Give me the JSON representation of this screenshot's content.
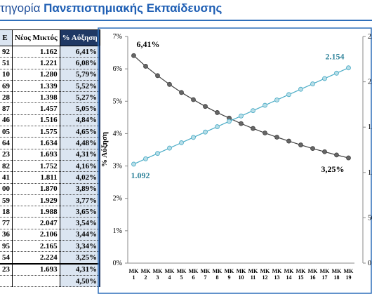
{
  "header": {
    "title_prefix": "τηγορία ",
    "title_bold": "Πανεπιστημιακής Εκπαίδευσης"
  },
  "table": {
    "columns": [
      "E",
      "Νέος Μικτός",
      "% Αύξηση"
    ],
    "rows": [
      [
        "92",
        "1.162",
        "6,41%"
      ],
      [
        "51",
        "1.221",
        "6,08%"
      ],
      [
        "10",
        "1.280",
        "5,79%"
      ],
      [
        "69",
        "1.339",
        "5,52%"
      ],
      [
        "28",
        "1.398",
        "5,27%"
      ],
      [
        "87",
        "1.457",
        "5,05%"
      ],
      [
        "46",
        "1.516",
        "4,84%"
      ],
      [
        "05",
        "1.575",
        "4,65%"
      ],
      [
        "64",
        "1.634",
        "4,48%"
      ],
      [
        "23",
        "1.693",
        "4,31%"
      ],
      [
        "82",
        "1.752",
        "4,16%"
      ],
      [
        "41",
        "1.811",
        "4,02%"
      ],
      [
        "00",
        "1.870",
        "3,89%"
      ],
      [
        "59",
        "1.929",
        "3,77%"
      ],
      [
        "18",
        "1.988",
        "3,65%"
      ],
      [
        "77",
        "2.047",
        "3,54%"
      ],
      [
        "36",
        "2.106",
        "3,44%"
      ],
      [
        "95",
        "2.165",
        "3,34%"
      ],
      [
        "54",
        "2.224",
        "3,25%"
      ],
      [
        "23",
        "1.693",
        "4,31%"
      ],
      [
        "",
        "",
        "4,50%"
      ]
    ]
  },
  "chart_data": {
    "type": "line",
    "y_label": "% Αύξηση",
    "categories": [
      "MK 1",
      "MK 2",
      "MK 3",
      "MK 4",
      "MK 5",
      "MK 6",
      "MK 7",
      "MK 8",
      "MK 9",
      "MK 10",
      "MK 11",
      "MK 12",
      "MK 13",
      "MK 14",
      "MK 15",
      "MK 16",
      "MK 17",
      "MK 18",
      "MK 19"
    ],
    "ylim": [
      0,
      7
    ],
    "yticks": [
      {
        "value": 0,
        "label": "0%"
      },
      {
        "value": 1,
        "label": "1%"
      },
      {
        "value": 2,
        "label": "2%"
      },
      {
        "value": 3,
        "label": "3%"
      },
      {
        "value": 4,
        "label": "4%"
      },
      {
        "value": 5,
        "label": "5%"
      },
      {
        "value": 6,
        "label": "6%"
      },
      {
        "value": 7,
        "label": "7%"
      }
    ],
    "y2lim": [
      0,
      2500
    ],
    "y2ticks": [
      0,
      {
        "value": 500,
        "label": "50"
      },
      {
        "value": 1000,
        "label": "1."
      },
      {
        "value": 1500,
        "label": "1."
      },
      {
        "value": 2000,
        "label": "2."
      },
      {
        "value": 2500,
        "label": "2."
      }
    ],
    "series": [
      {
        "name": "% Αύξηση",
        "color": "#404040",
        "values": [
          6.41,
          6.08,
          5.79,
          5.52,
          5.27,
          5.05,
          4.84,
          4.65,
          4.48,
          4.31,
          4.16,
          4.02,
          3.89,
          3.77,
          3.65,
          3.54,
          3.44,
          3.34,
          3.25
        ],
        "value_labels": [
          "6,41%",
          null,
          null,
          null,
          null,
          null,
          null,
          null,
          null,
          null,
          null,
          null,
          null,
          null,
          null,
          null,
          null,
          null,
          "3,25%"
        ]
      },
      {
        "name": "Μικτός",
        "color": "#4bacc6",
        "axis": "y2",
        "values": [
          1092,
          1151,
          1210,
          1269,
          1328,
          1387,
          1446,
          1505,
          1564,
          1623,
          1682,
          1741,
          1800,
          1859,
          1918,
          1977,
          2036,
          2095,
          2154
        ],
        "value_labels": [
          "1.092",
          null,
          null,
          null,
          null,
          null,
          null,
          null,
          null,
          null,
          null,
          null,
          null,
          null,
          null,
          null,
          null,
          null,
          "2.154"
        ]
      }
    ]
  }
}
